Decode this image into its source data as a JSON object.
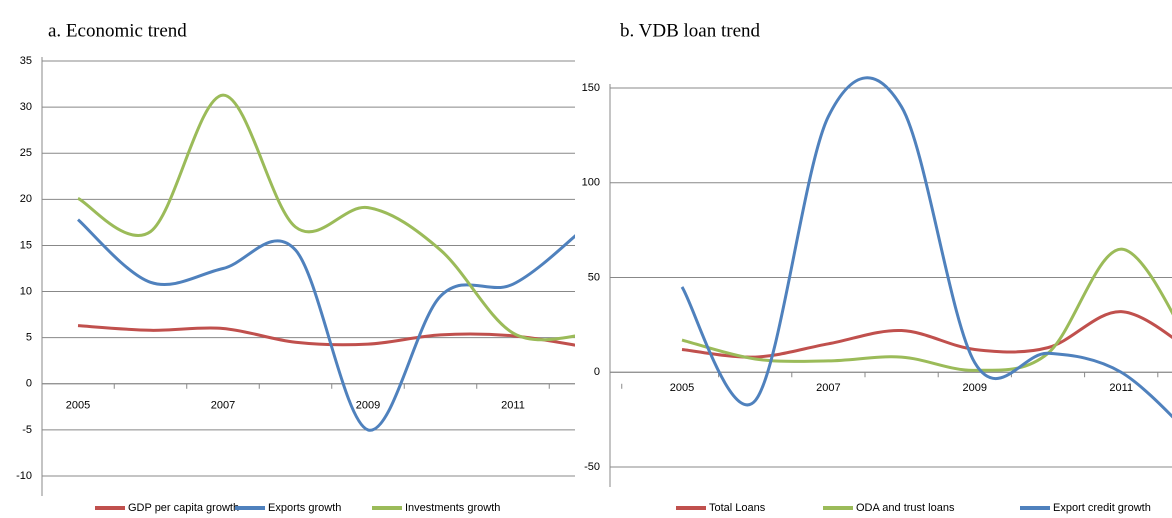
{
  "chart_data": [
    {
      "type": "line",
      "title": "a.  Economic trend",
      "categories": [
        "2005",
        null,
        "2007",
        null,
        "2009",
        null,
        "2011",
        null
      ],
      "ylim": [
        -10,
        35
      ],
      "yticks": [
        -10,
        -5,
        0,
        5,
        10,
        15,
        20,
        25,
        30,
        35
      ],
      "grid": true,
      "legend": "bottom",
      "series": [
        {
          "name": "GDP per capita growth",
          "color": "#c0504d",
          "values": [
            6.3,
            5.8,
            6.0,
            4.5,
            4.3,
            5.3,
            5.2,
            4.0
          ]
        },
        {
          "name": "Exports  growth",
          "color": "#4f81bd",
          "values": [
            17.8,
            11.0,
            12.5,
            14.5,
            -5.0,
            9.5,
            10.8,
            17.0
          ]
        },
        {
          "name": "Investments growth",
          "color": "#9bbb59",
          "values": [
            20.1,
            16.5,
            31.3,
            17.0,
            19.1,
            14.5,
            5.5,
            5.3
          ]
        }
      ]
    },
    {
      "type": "line",
      "title": "b.  VDB loan trend",
      "categories": [
        "2005",
        null,
        "2007",
        null,
        "2009",
        null,
        "2011",
        null
      ],
      "ylim": [
        -50,
        150
      ],
      "yticks": [
        -50,
        0,
        50,
        100,
        150
      ],
      "grid": true,
      "legend": "bottom",
      "series": [
        {
          "name": "Total Loans",
          "color": "#c0504d",
          "values": [
            12,
            8,
            15,
            22,
            12,
            13,
            32,
            10
          ]
        },
        {
          "name": "ODA and trust loans",
          "color": "#9bbb59",
          "values": [
            17,
            7,
            6,
            8,
            1,
            10,
            65,
            10
          ]
        },
        {
          "name": "Export credit growth",
          "color": "#4f81bd",
          "values": [
            45,
            -15,
            135,
            140,
            5,
            10,
            0,
            -35
          ]
        }
      ]
    }
  ]
}
